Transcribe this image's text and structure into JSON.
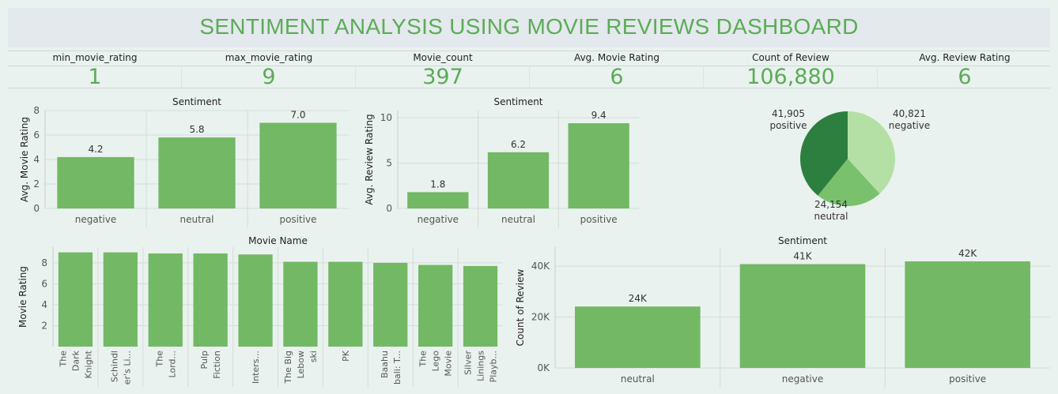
{
  "dashboard": {
    "title": "SENTIMENT ANALYSIS USING MOVIE REVIEWS DASHBOARD"
  },
  "kpis": [
    {
      "label": "min_movie_rating",
      "value": "1"
    },
    {
      "label": "max_movie_rating",
      "value": "9"
    },
    {
      "label": "Movie_count",
      "value": "397"
    },
    {
      "label": "Avg. Movie Rating",
      "value": "6"
    },
    {
      "label": "Count of Review",
      "value": "106,880"
    },
    {
      "label": "Avg. Review Rating",
      "value": "6"
    }
  ],
  "colors": {
    "bar": "#73b865",
    "pie_dark": "#2d7f3f",
    "pie_mid": "#7ac16d",
    "pie_light": "#b5e0a5",
    "title": "#5cab58"
  },
  "chart_data": [
    {
      "type": "bar",
      "title": "Sentiment",
      "ylabel": "Avg. Movie Rating",
      "categories": [
        "negative",
        "neutral",
        "positive"
      ],
      "values": [
        4.2,
        5.8,
        7.0
      ],
      "value_labels": [
        "4.2",
        "5.8",
        "7.0"
      ],
      "ylim": [
        0,
        8
      ],
      "yticks": [
        0,
        2,
        4,
        6,
        8
      ],
      "ytick_labels": [
        "0",
        "2",
        "4",
        "6",
        "8"
      ],
      "grid": true
    },
    {
      "type": "bar",
      "title": "Sentiment",
      "ylabel": "Avg. Review Rating",
      "categories": [
        "negative",
        "neutral",
        "positive"
      ],
      "values": [
        1.8,
        6.2,
        9.4
      ],
      "value_labels": [
        "1.8",
        "6.2",
        "9.4"
      ],
      "ylim": [
        0,
        10.8
      ],
      "yticks": [
        0,
        5,
        10
      ],
      "ytick_labels": [
        "0",
        "5",
        "10"
      ],
      "grid": true
    },
    {
      "type": "pie",
      "slices": [
        {
          "label": "negative",
          "value": 40821,
          "value_label": "40,821"
        },
        {
          "label": "neutral",
          "value": 24154,
          "value_label": "24,154"
        },
        {
          "label": "positive",
          "value": 41905,
          "value_label": "41,905"
        }
      ]
    },
    {
      "type": "bar",
      "title": "Movie Name",
      "ylabel": "Movie Rating",
      "categories": [
        [
          "The",
          "Dark",
          "Knight"
        ],
        [
          "Schindl",
          "er's Li..."
        ],
        [
          "The",
          "Lord..."
        ],
        [
          "Pulp",
          "Fiction"
        ],
        [
          "Inters..."
        ],
        [
          "The Big",
          "Lebow",
          "ski"
        ],
        [
          "PK"
        ],
        [
          "Baahu",
          "bali: T..."
        ],
        [
          "The",
          "Lego",
          "Movie"
        ],
        [
          "Silver",
          "Linings",
          "Playb..."
        ]
      ],
      "values": [
        9.0,
        9.0,
        8.9,
        8.9,
        8.8,
        8.1,
        8.1,
        8.0,
        7.8,
        7.7
      ],
      "ylim": [
        0,
        9.5
      ],
      "yticks": [
        2,
        4,
        6,
        8
      ],
      "ytick_labels": [
        "2",
        "4",
        "6",
        "8"
      ],
      "grid": true
    },
    {
      "type": "bar",
      "title": "Sentiment",
      "ylabel": "Count of Review",
      "categories": [
        "neutral",
        "negative",
        "positive"
      ],
      "values": [
        24154,
        40821,
        41905
      ],
      "value_labels": [
        "24K",
        "41K",
        "42K"
      ],
      "ylim": [
        0,
        47500
      ],
      "yticks": [
        0,
        20000,
        40000
      ],
      "ytick_labels": [
        "0K",
        "20K",
        "40K"
      ],
      "grid": true
    }
  ]
}
